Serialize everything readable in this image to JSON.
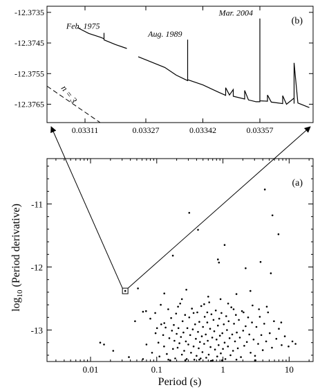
{
  "chart_data": [
    {
      "id": "b",
      "type": "line",
      "panel_label": "(b)",
      "xlabel": "",
      "ylabel": "",
      "xlim": [
        0.03301,
        0.03371
      ],
      "ylim": [
        -12.3771,
        -12.3733
      ],
      "x_ticks": [
        {
          "value": 0.03311,
          "label": "0.03311"
        },
        {
          "value": 0.03327,
          "label": "0.03327"
        },
        {
          "value": 0.03342,
          "label": "0.03342"
        },
        {
          "value": 0.03357,
          "label": "0.03357"
        }
      ],
      "y_ticks": [
        {
          "value": -12.3735,
          "label": "-12.3735"
        },
        {
          "value": -12.3745,
          "label": "-12.3745"
        },
        {
          "value": -12.3755,
          "label": "-12.3755"
        },
        {
          "value": -12.3765,
          "label": "-12.3765"
        }
      ],
      "series": [
        {
          "segments": [
            [
              [
                0.03309,
                -12.374
              ],
              [
                0.03312,
                -12.37419
              ],
              [
                0.03315,
                -12.37431
              ],
              [
                0.03316,
                -12.37436
              ],
              [
                0.03316,
                -12.37417
              ],
              [
                0.03316,
                -12.3744
              ],
              [
                0.03319,
                -12.37455
              ],
              [
                0.03322,
                -12.37468
              ]
            ],
            [
              [
                0.03325,
                -12.37495
              ],
              [
                0.03328,
                -12.3751
              ],
              [
                0.03332,
                -12.3753
              ],
              [
                0.03335,
                -12.37555
              ],
              [
                0.03337,
                -12.37567
              ],
              [
                0.03338,
                -12.37573
              ],
              [
                0.03338,
                -12.37439
              ],
              [
                0.03338,
                -12.3757
              ],
              [
                0.03342,
                -12.37587
              ],
              [
                0.03346,
                -12.3761
              ],
              [
                0.03348,
                -12.37621
              ],
              [
                0.03348,
                -12.37596
              ],
              [
                0.03349,
                -12.3762
              ],
              [
                0.0335,
                -12.37602
              ],
              [
                0.0335,
                -12.37624
              ],
              [
                0.03353,
                -12.37633
              ],
              [
                0.03353,
                -12.37605
              ],
              [
                0.03354,
                -12.37636
              ],
              [
                0.03356,
                -12.37642
              ],
              [
                0.03357,
                -12.37642
              ],
              [
                0.03357,
                -12.3737
              ],
              [
                0.03357,
                -12.37639
              ],
              [
                0.03359,
                -12.3764
              ],
              [
                0.03359,
                -12.3762
              ],
              [
                0.0336,
                -12.37643
              ],
              [
                0.03363,
                -12.37648
              ],
              [
                0.03363,
                -12.37622
              ],
              [
                0.03364,
                -12.3765
              ],
              [
                0.03366,
                -12.3763
              ],
              [
                0.03366,
                -12.37648
              ],
              [
                0.03366,
                -12.37515
              ],
              [
                0.03367,
                -12.37646
              ],
              [
                0.0337,
                -12.37661
              ]
            ]
          ]
        }
      ],
      "reference_line": {
        "label": "n = 3",
        "points": [
          [
            0.03301,
            -12.37591
          ],
          [
            0.03315,
            -12.3771
          ]
        ]
      },
      "annotations": [
        {
          "text": "Feb. 1975",
          "x": 0.03316,
          "y": -12.37417
        },
        {
          "text": "Aug. 1989",
          "x": 0.03338,
          "y": -12.37439
        },
        {
          "text": "Mar. 2004",
          "x": 0.03357,
          "y": -12.3737
        }
      ]
    },
    {
      "id": "a",
      "type": "scatter",
      "panel_label": "(a)",
      "xlabel": "Period (s)",
      "ylabel": "log10 (Period derivative)",
      "ylabel_parts": [
        "log",
        "10",
        " (Period derivative)"
      ],
      "x_scale": "log",
      "xlim": [
        0.0022,
        23
      ],
      "ylim": [
        -13.5,
        -10.28
      ],
      "x_ticks": [
        {
          "value": 0.01,
          "label": "0.01"
        },
        {
          "value": 0.1,
          "label": "0.1"
        },
        {
          "value": 1,
          "label": "1"
        },
        {
          "value": 10,
          "label": "10"
        }
      ],
      "y_ticks": [
        {
          "value": -11,
          "label": "-11"
        },
        {
          "value": -12,
          "label": "-12"
        },
        {
          "value": -13,
          "label": "-13"
        }
      ],
      "highlighted_point": {
        "x": 0.0334,
        "y": -12.38
      },
      "points": [
        [
          0.0334,
          -12.38
        ],
        [
          4.3,
          -10.77
        ],
        [
          0.31,
          -11.14
        ],
        [
          0.42,
          -11.41
        ],
        [
          5.6,
          -11.18
        ],
        [
          6.9,
          -11.48
        ],
        [
          0.175,
          -11.82
        ],
        [
          1.06,
          -11.65
        ],
        [
          0.052,
          -12.34
        ],
        [
          0.84,
          -11.88
        ],
        [
          0.87,
          -11.93
        ],
        [
          2.2,
          -12.02
        ],
        [
          3.7,
          -11.92
        ],
        [
          5.3,
          -12.1
        ],
        [
          0.13,
          -12.42
        ],
        [
          0.28,
          -12.36
        ],
        [
          0.6,
          -12.47
        ],
        [
          1.6,
          -12.43
        ],
        [
          2.6,
          -12.38
        ],
        [
          0.016,
          -13.23
        ],
        [
          0.014,
          -13.2
        ],
        [
          0.022,
          -13.33
        ],
        [
          0.038,
          -13.43
        ],
        [
          0.047,
          -12.86
        ],
        [
          0.062,
          -12.71
        ],
        [
          0.069,
          -12.7
        ],
        [
          0.08,
          -12.82
        ],
        [
          0.096,
          -13.05
        ],
        [
          0.101,
          -12.97
        ],
        [
          0.106,
          -13.2
        ],
        [
          0.11,
          -13.42
        ],
        [
          0.117,
          -12.91
        ],
        [
          0.125,
          -13.08
        ],
        [
          0.129,
          -13.26
        ],
        [
          0.136,
          -12.96
        ],
        [
          0.142,
          -13.38
        ],
        [
          0.149,
          -12.67
        ],
        [
          0.155,
          -13.13
        ],
        [
          0.16,
          -13.48
        ],
        [
          0.165,
          -12.81
        ],
        [
          0.17,
          -13.01
        ],
        [
          0.176,
          -13.3
        ],
        [
          0.181,
          -12.92
        ],
        [
          0.185,
          -13.17
        ],
        [
          0.19,
          -13.45
        ],
        [
          0.196,
          -12.74
        ],
        [
          0.2,
          -13.06
        ],
        [
          0.207,
          -13.28
        ],
        [
          0.213,
          -12.97
        ],
        [
          0.22,
          -13.21
        ],
        [
          0.226,
          -12.58
        ],
        [
          0.232,
          -13.11
        ],
        [
          0.24,
          -13.39
        ],
        [
          0.246,
          -12.86
        ],
        [
          0.253,
          -13.04
        ],
        [
          0.26,
          -13.33
        ],
        [
          0.268,
          -12.76
        ],
        [
          0.275,
          -13.18
        ],
        [
          0.283,
          -13.46
        ],
        [
          0.29,
          -12.97
        ],
        [
          0.3,
          -13.23
        ],
        [
          0.31,
          -12.8
        ],
        [
          0.32,
          -13.08
        ],
        [
          0.33,
          -13.36
        ],
        [
          0.34,
          -12.66
        ],
        [
          0.35,
          -12.99
        ],
        [
          0.36,
          -13.26
        ],
        [
          0.37,
          -13.47
        ],
        [
          0.38,
          -12.91
        ],
        [
          0.39,
          -13.14
        ],
        [
          0.4,
          -13.41
        ],
        [
          0.41,
          -12.72
        ],
        [
          0.42,
          -13.03
        ],
        [
          0.43,
          -13.29
        ],
        [
          0.44,
          -12.87
        ],
        [
          0.45,
          -13.19
        ],
        [
          0.46,
          -13.45
        ],
        [
          0.47,
          -12.62
        ],
        [
          0.48,
          -13.1
        ],
        [
          0.49,
          -13.35
        ],
        [
          0.5,
          -12.95
        ],
        [
          0.52,
          -13.22
        ],
        [
          0.53,
          -12.79
        ],
        [
          0.55,
          -13.07
        ],
        [
          0.56,
          -13.44
        ],
        [
          0.58,
          -12.88
        ],
        [
          0.59,
          -13.17
        ],
        [
          0.61,
          -13.39
        ],
        [
          0.62,
          -12.56
        ],
        [
          0.64,
          -12.98
        ],
        [
          0.65,
          -13.27
        ],
        [
          0.67,
          -12.75
        ],
        [
          0.69,
          -13.12
        ],
        [
          0.7,
          -13.48
        ],
        [
          0.72,
          -12.84
        ],
        [
          0.74,
          -13.02
        ],
        [
          0.76,
          -13.31
        ],
        [
          0.78,
          -12.69
        ],
        [
          0.8,
          -13.15
        ],
        [
          0.82,
          -13.42
        ],
        [
          0.84,
          -12.93
        ],
        [
          0.86,
          -13.24
        ],
        [
          0.88,
          -12.82
        ],
        [
          0.9,
          -13.09
        ],
        [
          0.93,
          -13.37
        ],
        [
          0.95,
          -12.73
        ],
        [
          0.98,
          -13.05
        ],
        [
          1.0,
          -13.3
        ],
        [
          1.03,
          -12.91
        ],
        [
          1.06,
          -13.2
        ],
        [
          1.09,
          -13.46
        ],
        [
          1.12,
          -12.78
        ],
        [
          1.15,
          -13.0
        ],
        [
          1.19,
          -13.26
        ],
        [
          1.22,
          -12.86
        ],
        [
          1.26,
          -13.13
        ],
        [
          1.3,
          -13.4
        ],
        [
          1.34,
          -12.64
        ],
        [
          1.38,
          -13.07
        ],
        [
          1.42,
          -13.33
        ],
        [
          1.47,
          -12.9
        ],
        [
          1.52,
          -13.18
        ],
        [
          1.57,
          -12.76
        ],
        [
          1.62,
          -13.04
        ],
        [
          1.68,
          -13.29
        ],
        [
          1.74,
          -12.84
        ],
        [
          1.8,
          -13.12
        ],
        [
          1.87,
          -13.43
        ],
        [
          1.94,
          -12.7
        ],
        [
          2.02,
          -13.01
        ],
        [
          2.1,
          -13.25
        ],
        [
          2.2,
          -12.94
        ],
        [
          2.3,
          -13.19
        ],
        [
          2.4,
          -12.8
        ],
        [
          2.5,
          -13.07
        ],
        [
          2.62,
          -13.36
        ],
        [
          2.75,
          -12.88
        ],
        [
          2.9,
          -13.15
        ],
        [
          3.05,
          -13.41
        ],
        [
          3.2,
          -12.95
        ],
        [
          3.4,
          -13.22
        ],
        [
          3.6,
          -12.79
        ],
        [
          3.8,
          -13.08
        ],
        [
          4.0,
          -13.32
        ],
        [
          4.2,
          -12.9
        ],
        [
          4.5,
          -13.18
        ],
        [
          4.8,
          -12.72
        ],
        [
          5.1,
          -13.05
        ],
        [
          5.5,
          -13.28
        ],
        [
          5.9,
          -12.86
        ],
        [
          6.4,
          -13.14
        ],
        [
          7.0,
          -12.98
        ],
        [
          7.7,
          -13.24
        ],
        [
          8.6,
          -13.1
        ],
        [
          9.8,
          -13.26
        ],
        [
          11.2,
          -13.18
        ],
        [
          12.5,
          -13.22
        ],
        [
          0.095,
          -12.73
        ],
        [
          0.13,
          -12.89
        ],
        [
          0.21,
          -12.63
        ],
        [
          0.36,
          -12.73
        ],
        [
          0.52,
          -12.59
        ],
        [
          0.92,
          -12.51
        ],
        [
          1.45,
          -12.67
        ],
        [
          2.8,
          -12.61
        ],
        [
          4.6,
          -12.63
        ],
        [
          0.15,
          -13.47
        ],
        [
          0.27,
          -13.48
        ],
        [
          0.44,
          -13.47
        ],
        [
          0.66,
          -13.49
        ],
        [
          0.97,
          -13.48
        ],
        [
          1.6,
          -13.47
        ],
        [
          3.1,
          -13.48
        ],
        [
          0.115,
          -12.6
        ],
        [
          0.24,
          -12.51
        ],
        [
          0.58,
          -12.72
        ],
        [
          1.2,
          -12.58
        ],
        [
          2.05,
          -12.72
        ],
        [
          3.5,
          -12.67
        ],
        [
          7.6,
          -12.88
        ],
        [
          0.07,
          -13.23
        ],
        [
          0.085,
          -13.36
        ],
        [
          0.062,
          -13.46
        ]
      ]
    }
  ]
}
